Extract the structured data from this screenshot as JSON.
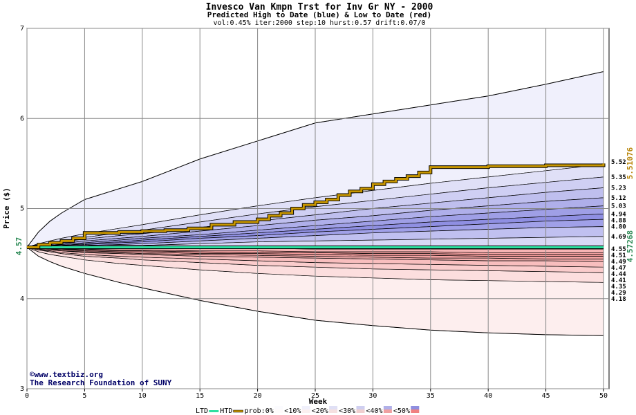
{
  "chart_data": {
    "type": "area",
    "title": "Invesco Van Kmpn Trst for Inv Gr NY - 2000",
    "subtitle": "Predicted High to Date (blue) &  Low to Date (red)",
    "params": "vol:0.45% iter:2000 step:10 hurst:0.57 drift:0.07/0",
    "xlabel": "Week",
    "ylabel": "Price ($)",
    "xlim": [
      0,
      50
    ],
    "ylim": [
      3,
      7
    ],
    "xticks": [
      0,
      5,
      10,
      15,
      20,
      25,
      30,
      35,
      40,
      45,
      50
    ],
    "yticks": [
      3,
      4,
      5,
      6,
      7
    ],
    "grid": true,
    "start_price_label": "4.57",
    "start_price": 4.57,
    "right_labels": {
      "high": [
        "5.52",
        "5.35",
        "5.23",
        "5.12",
        "5.03",
        "4.94",
        "4.88",
        "4.80",
        "4.69"
      ],
      "low": [
        "4.55",
        "4.51",
        "4.49",
        "4.47",
        "4.44",
        "4.41",
        "4.35",
        "4.29",
        "4.18"
      ]
    },
    "side_values": {
      "htd_final": "5.51076",
      "ltd_final": "4.57268",
      "htd_color": "#b8860b",
      "ltd_color": "#2e8b57"
    },
    "series": [
      {
        "name": "HTD",
        "x": [
          0,
          1,
          2,
          3,
          4,
          5,
          8,
          10,
          12,
          14,
          16,
          18,
          20,
          21,
          22,
          23,
          24,
          25,
          26,
          27,
          28,
          29,
          30,
          31,
          32,
          33,
          34,
          35,
          40,
          45,
          50
        ],
        "values": [
          4.57,
          4.6,
          4.62,
          4.64,
          4.67,
          4.73,
          4.74,
          4.75,
          4.76,
          4.78,
          4.82,
          4.85,
          4.88,
          4.92,
          4.95,
          5.0,
          5.04,
          5.07,
          5.1,
          5.15,
          5.19,
          5.22,
          5.27,
          5.3,
          5.33,
          5.36,
          5.4,
          5.46,
          5.47,
          5.48,
          5.5
        ]
      },
      {
        "name": "LTD",
        "x": [
          0,
          50
        ],
        "values": [
          4.57,
          4.57
        ]
      }
    ],
    "bands": {
      "x": [
        0,
        1,
        2,
        3,
        5,
        8,
        10,
        15,
        20,
        25,
        30,
        35,
        40,
        45,
        50
      ],
      "high": [
        [
          4.57,
          4.74,
          4.86,
          4.95,
          5.1,
          5.22,
          5.3,
          5.55,
          5.75,
          5.95,
          6.05,
          6.15,
          6.25,
          6.38,
          6.52
        ],
        [
          4.57,
          4.61,
          4.64,
          4.67,
          4.72,
          4.78,
          4.82,
          4.93,
          5.03,
          5.12,
          5.2,
          5.28,
          5.35,
          5.42,
          5.49
        ],
        [
          4.57,
          4.6,
          4.62,
          4.64,
          4.68,
          4.73,
          4.76,
          4.85,
          4.94,
          5.02,
          5.09,
          5.16,
          5.23,
          5.29,
          5.35
        ],
        [
          4.57,
          4.59,
          4.61,
          4.63,
          4.66,
          4.7,
          4.72,
          4.79,
          4.86,
          4.93,
          5.0,
          5.06,
          5.12,
          5.18,
          5.23
        ],
        [
          4.57,
          4.58,
          4.6,
          4.61,
          4.64,
          4.67,
          4.69,
          4.75,
          4.81,
          4.87,
          4.92,
          4.98,
          5.03,
          5.08,
          5.12
        ],
        [
          4.57,
          4.58,
          4.59,
          4.6,
          4.62,
          4.65,
          4.67,
          4.71,
          4.76,
          4.81,
          4.86,
          4.91,
          4.95,
          4.99,
          5.03
        ],
        [
          4.57,
          4.58,
          4.59,
          4.59,
          4.61,
          4.63,
          4.65,
          4.69,
          4.73,
          4.77,
          4.81,
          4.85,
          4.88,
          4.91,
          4.94
        ],
        [
          4.57,
          4.58,
          4.58,
          4.59,
          4.6,
          4.62,
          4.63,
          4.67,
          4.7,
          4.74,
          4.77,
          4.8,
          4.83,
          4.86,
          4.88
        ],
        [
          4.57,
          4.57,
          4.58,
          4.58,
          4.59,
          4.6,
          4.61,
          4.64,
          4.67,
          4.7,
          4.73,
          4.75,
          4.77,
          4.79,
          4.8
        ],
        [
          4.57,
          4.57,
          4.57,
          4.57,
          4.58,
          4.59,
          4.59,
          4.61,
          4.63,
          4.64,
          4.65,
          4.66,
          4.67,
          4.68,
          4.69
        ]
      ],
      "low": [
        [
          4.57,
          4.57,
          4.57,
          4.56,
          4.56,
          4.56,
          4.56,
          4.56,
          4.56,
          4.55,
          4.55,
          4.55,
          4.55,
          4.55,
          4.55
        ],
        [
          4.57,
          4.56,
          4.56,
          4.55,
          4.55,
          4.54,
          4.54,
          4.53,
          4.53,
          4.52,
          4.52,
          4.52,
          4.51,
          4.51,
          4.51
        ],
        [
          4.57,
          4.56,
          4.55,
          4.55,
          4.54,
          4.53,
          4.53,
          4.52,
          4.51,
          4.51,
          4.5,
          4.5,
          4.49,
          4.49,
          4.49
        ],
        [
          4.57,
          4.56,
          4.55,
          4.54,
          4.53,
          4.52,
          4.52,
          4.5,
          4.5,
          4.49,
          4.48,
          4.48,
          4.47,
          4.47,
          4.47
        ],
        [
          4.57,
          4.55,
          4.54,
          4.53,
          4.52,
          4.51,
          4.5,
          4.49,
          4.48,
          4.47,
          4.46,
          4.45,
          4.45,
          4.44,
          4.44
        ],
        [
          4.57,
          4.55,
          4.54,
          4.53,
          4.51,
          4.5,
          4.49,
          4.47,
          4.46,
          4.45,
          4.44,
          4.43,
          4.42,
          4.42,
          4.41
        ],
        [
          4.57,
          4.54,
          4.53,
          4.51,
          4.49,
          4.47,
          4.46,
          4.44,
          4.42,
          4.4,
          4.39,
          4.38,
          4.37,
          4.36,
          4.35
        ],
        [
          4.57,
          4.54,
          4.52,
          4.5,
          4.47,
          4.45,
          4.43,
          4.4,
          4.37,
          4.35,
          4.33,
          4.32,
          4.31,
          4.3,
          4.29
        ],
        [
          4.57,
          4.52,
          4.49,
          4.47,
          4.43,
          4.39,
          4.37,
          4.32,
          4.28,
          4.25,
          4.23,
          4.21,
          4.2,
          4.19,
          4.18
        ],
        [
          4.57,
          4.47,
          4.41,
          4.36,
          4.28,
          4.18,
          4.12,
          3.98,
          3.86,
          3.76,
          3.7,
          3.65,
          3.62,
          3.6,
          3.59
        ]
      ],
      "high_colors": [
        "#f0f0fc",
        "#e0e0f7",
        "#cfcff3",
        "#bfbfee",
        "#afafea",
        "#9f9fe6",
        "#8f8fe2",
        "#a0a0e8",
        "#c0c0f0",
        "#d8d8f6"
      ],
      "low_colors": [
        "#fcc8c8",
        "#f7b4b4",
        "#f3a0a0",
        "#f29a9a",
        "#f4a4a4",
        "#f6b0b0",
        "#f8bebe",
        "#facccc",
        "#fcdede",
        "#fdeeee"
      ]
    },
    "legend": {
      "items": [
        "LTD",
        "HTD",
        "prob:0%",
        "<10%",
        "<20%",
        "<30%",
        "<40%",
        "<50%"
      ],
      "ltd_color": "#2edfa0",
      "htd_color": "#c89600",
      "swatches": [
        "#fbfbfe",
        "#f0f0fb",
        "#e0e0f5",
        "#cfcff0",
        "#b0b0e8",
        "#8f8fe0"
      ],
      "swatches_low": [
        "#fefbfb",
        "#fbf0f0",
        "#f5e0e0",
        "#f0cfcf",
        "#f0a0a0",
        "#f08080"
      ]
    },
    "watermark": [
      "©www.textbiz.org",
      "The Research Foundation of SUNY"
    ]
  }
}
